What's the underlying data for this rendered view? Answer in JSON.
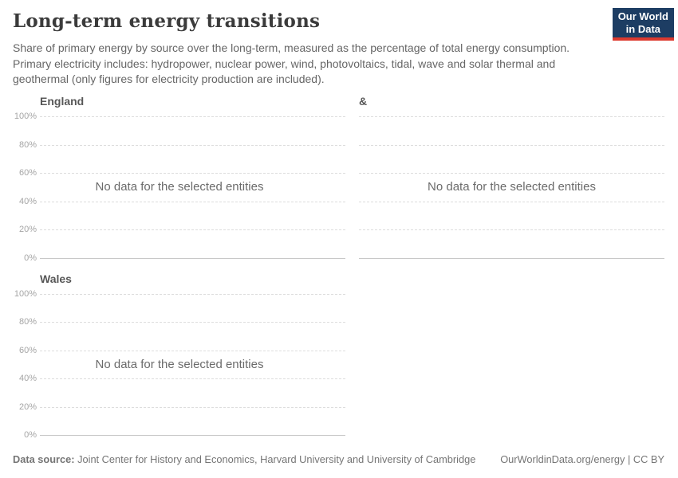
{
  "header": {
    "title": "Long-term energy transitions",
    "subtitle": "Share of primary energy by source over the long-term, measured as the percentage of total energy consumption. Primary electricity includes: hydropower, nuclear power, wind, photovoltaics, tidal, wave and solar thermal and geothermal (only figures for electricity production are included).",
    "logo": {
      "line1": "Our World",
      "line2": "in Data",
      "bg_color": "#1d3d63",
      "accent_color": "#dc3a2f"
    }
  },
  "chart_data": {
    "type": "line",
    "title": "Long-term energy transitions",
    "facets": [
      {
        "title": "England",
        "series": [],
        "no_data": true,
        "message": "No data for the selected entities",
        "show_y_ticks": true
      },
      {
        "title": "&",
        "series": [],
        "no_data": true,
        "message": "No data for the selected entities",
        "show_y_ticks": false
      },
      {
        "title": "Wales",
        "series": [],
        "no_data": true,
        "message": "No data for the selected entities",
        "show_y_ticks": true
      }
    ],
    "y_axis": {
      "min": 0,
      "max": 100,
      "unit": "%",
      "tick_labels": [
        "100%",
        "80%",
        "60%",
        "40%",
        "20%",
        "0%"
      ],
      "grid": "dashed-horizontal"
    },
    "x_axis": {
      "tick_labels": []
    },
    "legend": null
  },
  "footer": {
    "datasource_label": "Data source:",
    "datasource_text": " Joint Center for History and Economics, Harvard University and University of Cambridge",
    "link_text": "OurWorldinData.org/energy | CC BY"
  },
  "colors": {
    "background": "#ffffff",
    "title_text": "#3b3b3b",
    "subtitle_text": "#666666",
    "facet_title_text": "#575757",
    "tick_text": "#a5a5a5",
    "gridline": "#dddddd",
    "zero_line": "#c8c8c8",
    "no_data_text": "#6b6b6b",
    "footer_text": "#757575"
  }
}
